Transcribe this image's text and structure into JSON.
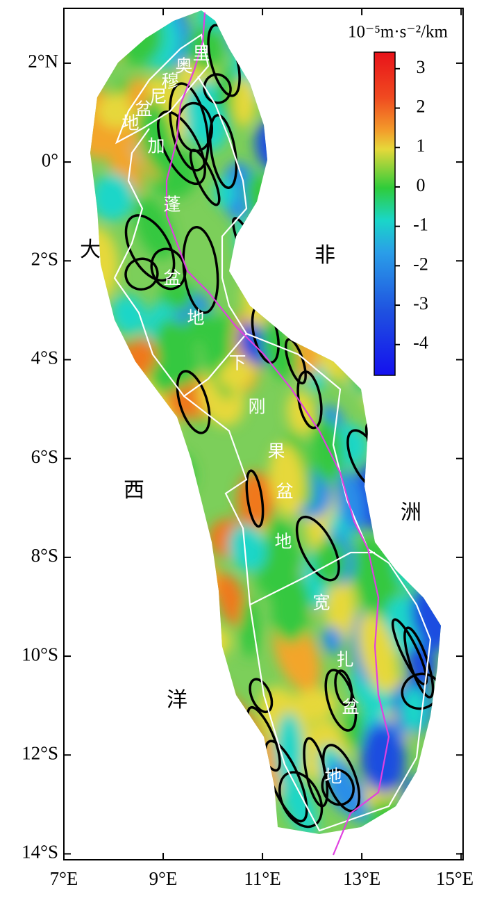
{
  "map": {
    "xlim": [
      7,
      15.04
    ],
    "ylim": [
      -14.12,
      3.11
    ],
    "xticks": [
      {
        "value": 7,
        "label": "7°E"
      },
      {
        "value": 9,
        "label": "9°E"
      },
      {
        "value": 11,
        "label": "11°E"
      },
      {
        "value": 13,
        "label": "13°E"
      },
      {
        "value": 15,
        "label": "15°E"
      }
    ],
    "yticks": [
      {
        "value": 2,
        "label": "2°N"
      },
      {
        "value": 0,
        "label": "0°"
      },
      {
        "value": -2,
        "label": "2°S"
      },
      {
        "value": -4,
        "label": "4°S"
      },
      {
        "value": -6,
        "label": "6°S"
      },
      {
        "value": -8,
        "label": "8°S"
      },
      {
        "value": -10,
        "label": "10°S"
      },
      {
        "value": -12,
        "label": "12°S"
      },
      {
        "value": -14,
        "label": "14°S"
      }
    ],
    "colorbar": {
      "unit": "10⁻⁵m·s⁻²/km",
      "lim": [
        -4.78,
        3.42
      ],
      "ticks": [
        3,
        2,
        1,
        0,
        -1,
        -2,
        -3,
        -4
      ]
    },
    "basin_labels": [
      [
        "里",
        "奥",
        "穆",
        "尼",
        "盆",
        "地"
      ],
      [
        "加",
        "蓬",
        "盆",
        "地"
      ],
      [
        "下",
        "刚",
        "果",
        "盆",
        "地"
      ],
      [
        "宽",
        "扎",
        "盆",
        "地"
      ]
    ],
    "region_labels": [
      [
        "大",
        "西",
        "洋"
      ],
      [
        "非",
        "洲"
      ]
    ]
  }
}
